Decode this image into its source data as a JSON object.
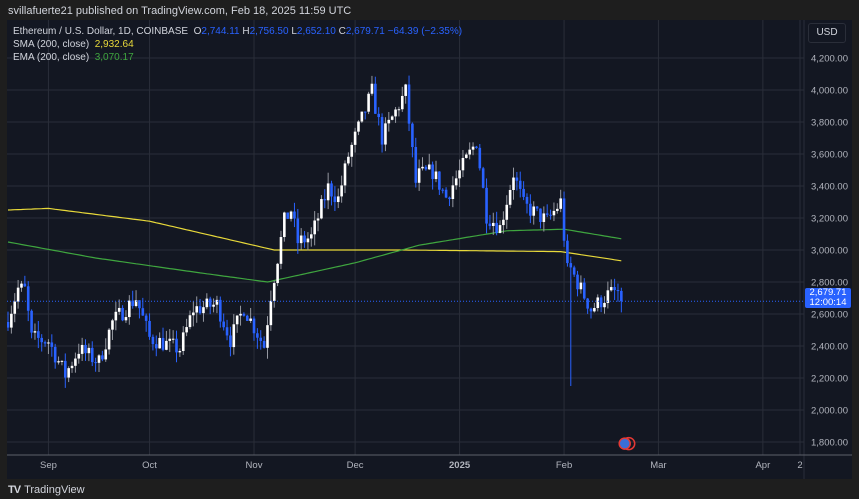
{
  "header": {
    "publish_text": "svillafuerte21 published on TradingView.com, Feb 18, 2025 11:59 UTC"
  },
  "legend": {
    "symbol": "Ethereum / U.S. Dollar, 1D, COINBASE",
    "o_label": "O",
    "open": "2,744.11",
    "h_label": "H",
    "high": "2,756.50",
    "l_label": "L",
    "low": "2,652.10",
    "c_label": "C",
    "close": "2,679.71",
    "change": "−64.39 (−2.35%)",
    "sma_label": "SMA (200, close)",
    "sma_value": "2,932.64",
    "ema_label": "EMA (200, close)",
    "ema_value": "3,070.17"
  },
  "currency_button": "USD",
  "price_label": {
    "price": "2,679.71",
    "countdown": "12:00:14"
  },
  "footer": {
    "logo_text": "TV",
    "brand": "TradingView"
  },
  "colors": {
    "up": "#ffffff",
    "down": "#2962ff",
    "sma": "#e8d93a",
    "ema": "#3fa63f",
    "background": "#131722",
    "grid": "#2a2e39"
  },
  "chart_data": {
    "type": "candlestick",
    "y_axis": {
      "range": [
        1700,
        4300
      ],
      "ticks": [
        1800,
        2000,
        2200,
        2400,
        2600,
        2800,
        3000,
        3200,
        3400,
        3600,
        3800,
        4000,
        4200
      ],
      "tick_labels": [
        "1,800.00",
        "2,000.00",
        "2,200.00",
        "2,400.00",
        "2,600.00",
        "2,800.00",
        "3,000.00",
        "3,200.00",
        "3,400.00",
        "3,600.00",
        "3,800.00",
        "4,000.00",
        "4,200.00"
      ]
    },
    "x_axis": {
      "range": [
        "2024-08-20",
        "2025-04-30"
      ],
      "ticks": [
        {
          "date": "2024-09-01",
          "label": "Sep"
        },
        {
          "date": "2024-10-01",
          "label": "Oct"
        },
        {
          "date": "2024-11-01",
          "label": "Nov"
        },
        {
          "date": "2024-12-01",
          "label": "Dec"
        },
        {
          "date": "2025-01-01",
          "label": "2025"
        },
        {
          "date": "2025-02-01",
          "label": "Feb"
        },
        {
          "date": "2025-03-01",
          "label": "Mar"
        },
        {
          "date": "2025-04-01",
          "label": "Apr"
        },
        {
          "date": "2025-05-01",
          "label": "2"
        }
      ]
    },
    "close_keypoints": [
      [
        "2024-08-20",
        2570
      ],
      [
        "2024-08-23",
        2760
      ],
      [
        "2024-08-25",
        2750
      ],
      [
        "2024-08-27",
        2450
      ],
      [
        "2024-09-01",
        2430
      ],
      [
        "2024-09-06",
        2220
      ],
      [
        "2024-09-10",
        2380
      ],
      [
        "2024-09-16",
        2300
      ],
      [
        "2024-09-20",
        2550
      ],
      [
        "2024-09-27",
        2700
      ],
      [
        "2024-10-01",
        2450
      ],
      [
        "2024-10-10",
        2380
      ],
      [
        "2024-10-14",
        2630
      ],
      [
        "2024-10-21",
        2660
      ],
      [
        "2024-10-25",
        2440
      ],
      [
        "2024-10-29",
        2640
      ],
      [
        "2024-11-04",
        2400
      ],
      [
        "2024-11-06",
        2720
      ],
      [
        "2024-11-10",
        3180
      ],
      [
        "2024-11-12",
        3250
      ],
      [
        "2024-11-14",
        3050
      ],
      [
        "2024-11-18",
        3080
      ],
      [
        "2024-11-23",
        3390
      ],
      [
        "2024-11-26",
        3320
      ],
      [
        "2024-11-29",
        3590
      ],
      [
        "2024-12-06",
        3990
      ],
      [
        "2024-12-09",
        3700
      ],
      [
        "2024-12-16",
        3990
      ],
      [
        "2024-12-19",
        3420
      ],
      [
        "2024-12-20",
        3470
      ],
      [
        "2024-12-24",
        3490
      ],
      [
        "2024-12-28",
        3330
      ],
      [
        "2025-01-06",
        3680
      ],
      [
        "2025-01-09",
        3220
      ],
      [
        "2025-01-13",
        3140
      ],
      [
        "2025-01-17",
        3480
      ],
      [
        "2025-01-20",
        3280
      ],
      [
        "2025-01-27",
        3180
      ],
      [
        "2025-01-31",
        3300
      ],
      [
        "2025-02-02",
        2870
      ],
      [
        "2025-02-03",
        2880
      ],
      [
        "2025-02-09",
        2630
      ],
      [
        "2025-02-14",
        2720
      ],
      [
        "2025-02-17",
        2744.11
      ],
      [
        "2025-02-18",
        2679.71
      ]
    ],
    "sma_keypoints": [
      [
        "2024-08-20",
        3250
      ],
      [
        "2024-09-01",
        3260
      ],
      [
        "2024-10-01",
        3180
      ],
      [
        "2024-11-07",
        3000
      ],
      [
        "2024-12-15",
        3000
      ],
      [
        "2025-01-31",
        2990
      ],
      [
        "2025-02-18",
        2932.64
      ]
    ],
    "ema_keypoints": [
      [
        "2024-08-20",
        3050
      ],
      [
        "2024-09-15",
        2950
      ],
      [
        "2024-10-15",
        2860
      ],
      [
        "2024-11-05",
        2800
      ],
      [
        "2024-12-01",
        2920
      ],
      [
        "2024-12-20",
        3030
      ],
      [
        "2025-01-15",
        3120
      ],
      [
        "2025-02-01",
        3130
      ],
      [
        "2025-02-18",
        3070.17
      ]
    ],
    "last_price": 2679.71
  }
}
